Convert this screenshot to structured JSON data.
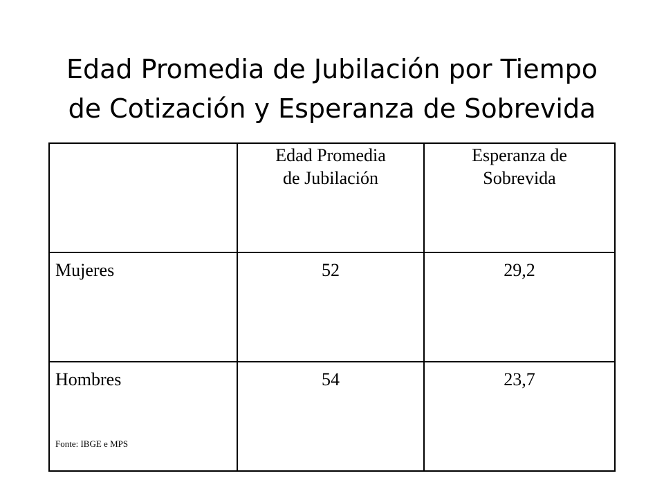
{
  "title": {
    "line1": "Edad Promedia de Jubilación por Tiempo",
    "line2": "de Cotización y Esperanza de Sobrevida"
  },
  "table": {
    "header": {
      "corner": "",
      "age_col": {
        "line1": "Edad Promedia",
        "line2": "de Jubilación"
      },
      "survival_col": {
        "line1": "Esperanza de",
        "line2": "Sobrevida"
      }
    },
    "rows": [
      {
        "label": "Mujeres",
        "age": "52",
        "survival": "29,2"
      },
      {
        "label": "Hombres",
        "age": "54",
        "survival": "23,7"
      }
    ]
  },
  "source": "Fonte: IBGE e MPS"
}
